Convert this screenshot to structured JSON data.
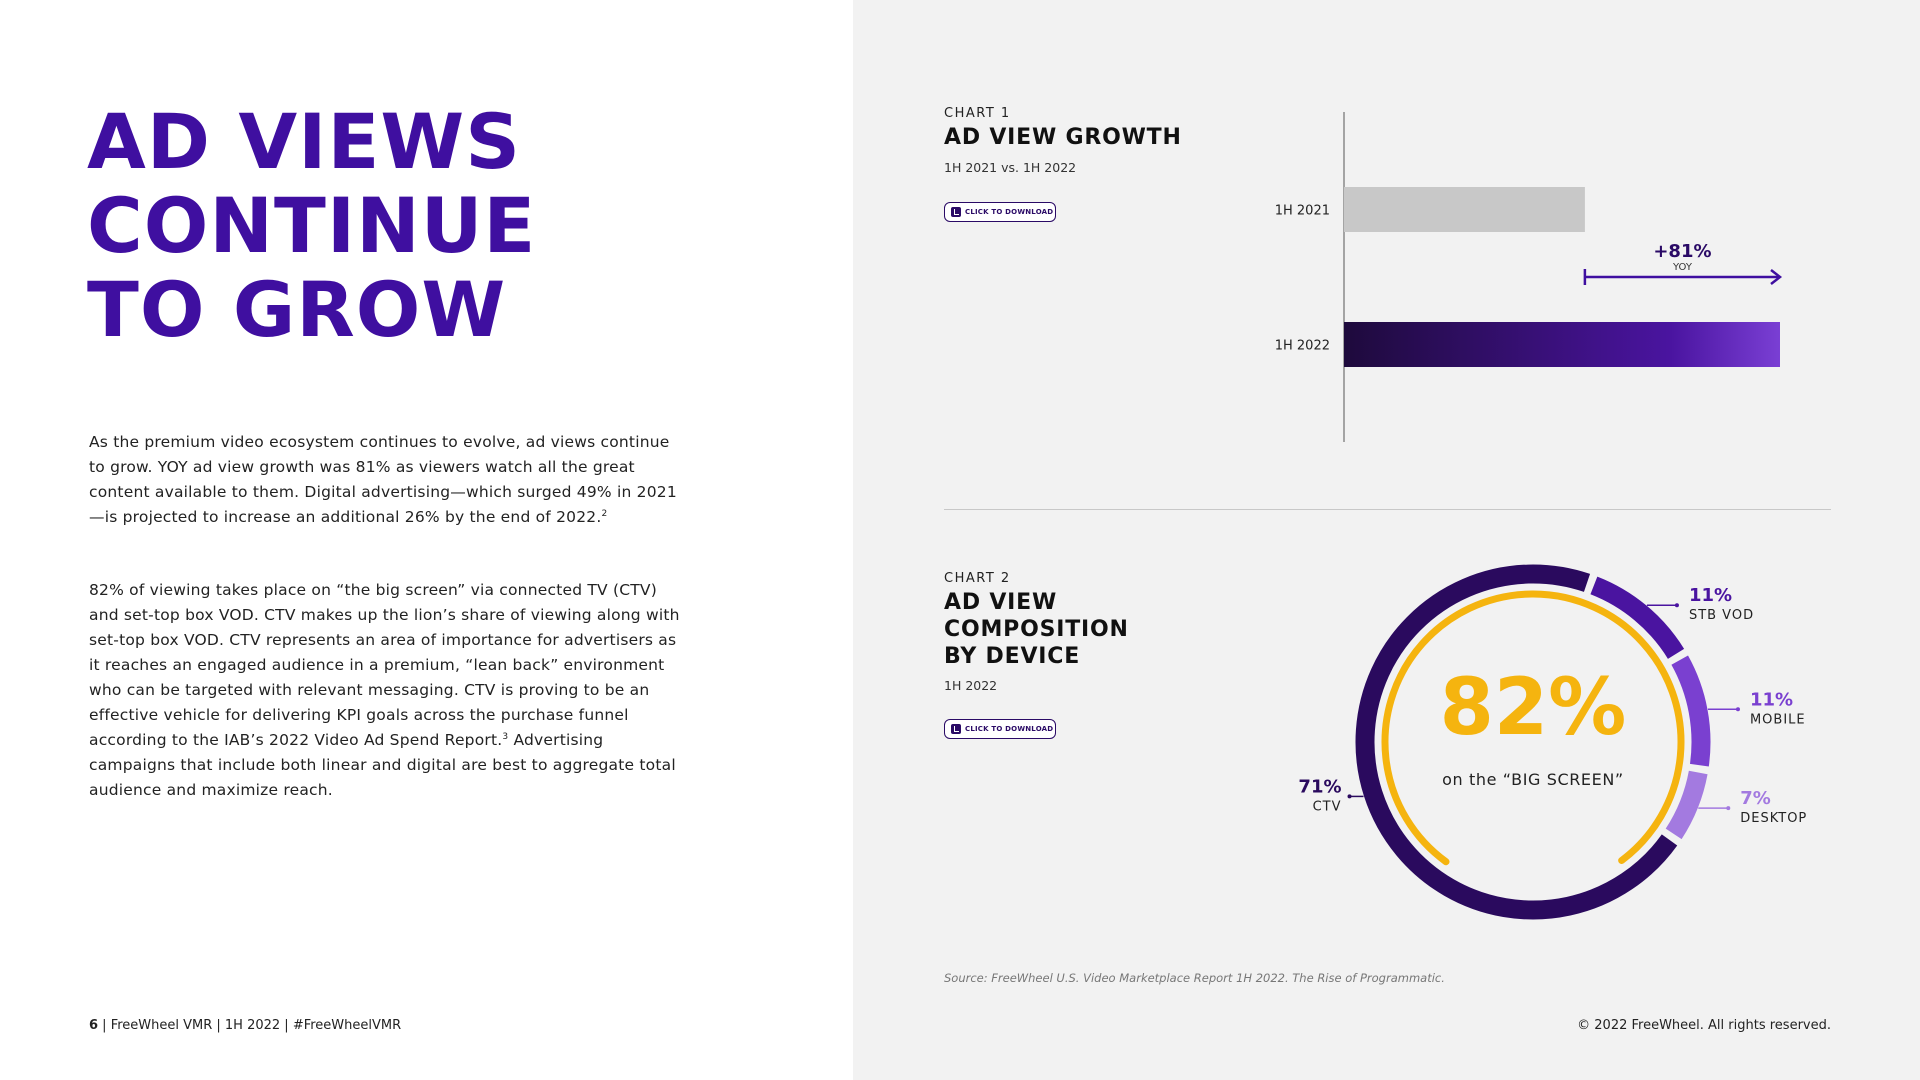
{
  "headline": [
    "AD VIEWS",
    "CONTINUE",
    "TO GROW"
  ],
  "body": {
    "p1": "As the premium video ecosystem continues to evolve, ad views continue to grow. YOY ad view growth was 81% as viewers watch all the great content available to them. Digital advertising—which surged 49% in 2021—is projected to increase an additional 26% by the end of 2022.",
    "p1_note": "2",
    "p2a": "82% of viewing takes place on “the big screen” via connected TV (CTV) and set-top box VOD. CTV makes up the lion’s share of viewing along with set-top box VOD. CTV represents an area of importance for advertisers as it reaches an engaged audience in a premium, “lean back” environment who can be targeted with relevant messaging. CTV is proving to be an effective vehicle for delivering KPI goals across the purchase funnel according to the IAB’s 2022 Video Ad Spend Report.",
    "p2_note": "3",
    "p2b": " Advertising campaigns that include both linear and digital are best to aggregate total audience and maximize reach."
  },
  "footer": {
    "page": "6",
    "text": "FreeWheel VMR | 1H 2022 | #FreeWheelVMR",
    "sep": " | ",
    "copyright": "© 2022 FreeWheel. All rights reserved."
  },
  "chart1": {
    "kicker": "CHART 1",
    "title": "AD VIEW GROWTH",
    "subtitle": "1H 2021 vs. 1H 2022",
    "download_label": "CLICK TO DOWNLOAD",
    "growth_label": "+81%",
    "growth_sub": "YOY"
  },
  "chart2": {
    "kicker": "CHART 2",
    "title_lines": [
      "AD VIEW",
      "COMPOSITION",
      "BY DEVICE"
    ],
    "subtitle": "1H 2022",
    "download_label": "CLICK TO DOWNLOAD",
    "center_value": "82%",
    "center_label": "on the “BIG SCREEN”"
  },
  "source": "Source: FreeWheel U.S. Video Marketplace Report 1H 2022. The Rise of Programmatic.",
  "colors": {
    "headline": "#3f0fa0",
    "bar_2021": "#c8c8c8",
    "bar_2022_start": "#1e0a3c",
    "bar_2022_end": "#7a3fd4",
    "arrow": "#3f0fa0",
    "ctv": "#2a0a5e",
    "stb_vod": "#4a14a0",
    "mobile": "#7a40d0",
    "desktop": "#a37ae0",
    "big_screen": "#f5b40f"
  },
  "chart_data": [
    {
      "type": "bar",
      "orientation": "horizontal",
      "categories": [
        "1H 2021",
        "1H 2022"
      ],
      "values": [
        100,
        181
      ],
      "annotation": "+81% YOY",
      "xlim": [
        0,
        181
      ]
    },
    {
      "type": "pie",
      "style": "donut",
      "labels": [
        "CTV",
        "STB VOD",
        "MOBILE",
        "DESKTOP"
      ],
      "values": [
        71,
        11,
        11,
        7
      ],
      "value_labels": [
        "71%",
        "11%",
        "11%",
        "7%"
      ],
      "colors": [
        "#2a0a5e",
        "#4a14a0",
        "#7a40d0",
        "#a37ae0"
      ],
      "inner_ring": {
        "label": "on the “BIG SCREEN”",
        "value": 82
      }
    }
  ]
}
